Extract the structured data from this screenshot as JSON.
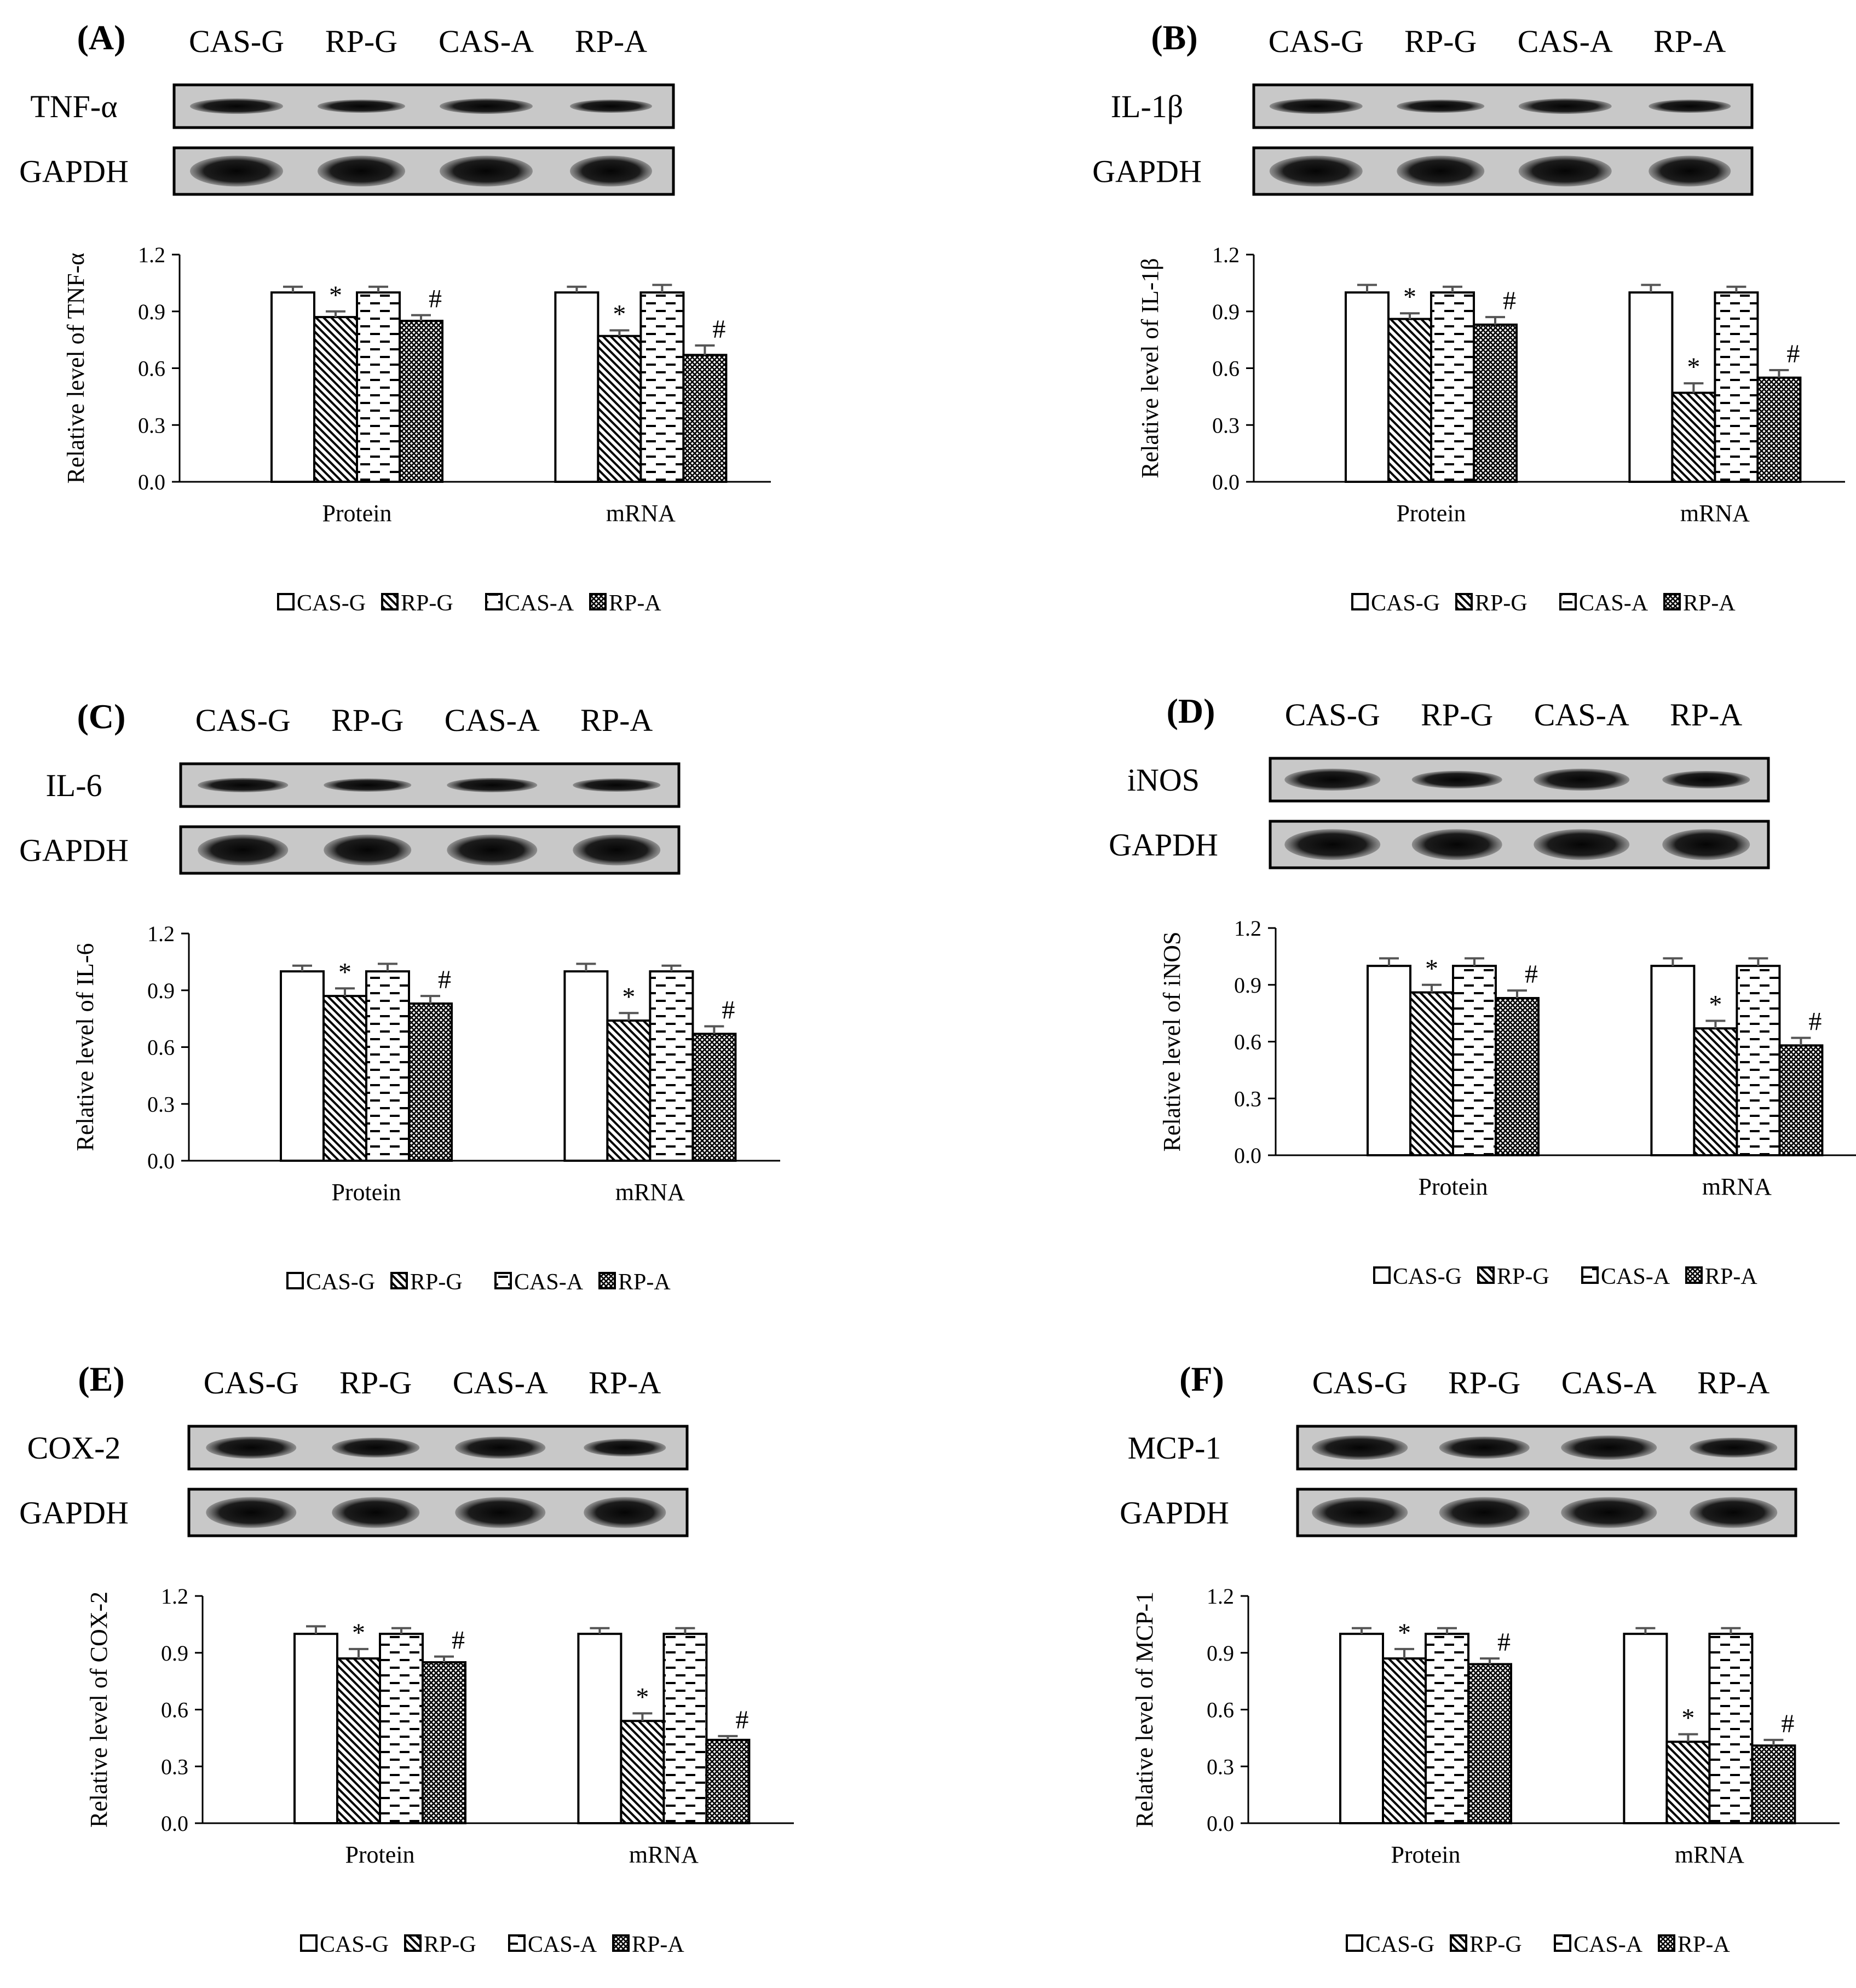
{
  "colors": {
    "axis": "#000000",
    "bar_fill": "#ffffff",
    "band": "#1a1a1a",
    "blot_bg": "#c8c8c8"
  },
  "panels": [
    {
      "letter": "(A)",
      "lanes": [
        "CAS-G",
        "RP-G",
        "CAS-A",
        "RP-A"
      ],
      "target": "TNF-α",
      "reference": "GAPDH",
      "chart_data": {
        "type": "bar",
        "ylabel": "Relative level of TNF-α",
        "ylim": [
          0,
          1.2
        ],
        "yticks": [
          "0.0",
          "0.3",
          "0.6",
          "0.9",
          "1.2"
        ],
        "categories": [
          "Protein",
          "mRNA"
        ],
        "series": [
          {
            "name": "CAS-G",
            "pattern": "plain",
            "values": [
              1.0,
              1.0
            ],
            "errors": [
              0.03,
              0.03
            ],
            "marks": [
              "",
              ""
            ]
          },
          {
            "name": "RP-G",
            "pattern": "diag",
            "values": [
              0.87,
              0.77
            ],
            "errors": [
              0.03,
              0.03
            ],
            "marks": [
              "*",
              "*"
            ]
          },
          {
            "name": "CAS-A",
            "pattern": "dash",
            "values": [
              1.0,
              1.0
            ],
            "errors": [
              0.03,
              0.04
            ],
            "marks": [
              "",
              ""
            ]
          },
          {
            "name": "RP-A",
            "pattern": "cross",
            "values": [
              0.85,
              0.67
            ],
            "errors": [
              0.03,
              0.05
            ],
            "marks": [
              "#",
              "#"
            ]
          }
        ]
      }
    },
    {
      "letter": "(B)",
      "lanes": [
        "CAS-G",
        "RP-G",
        "CAS-A",
        "RP-A"
      ],
      "target": "IL-1β",
      "reference": "GAPDH",
      "chart_data": {
        "type": "bar",
        "ylabel": "Relative level of IL-1β",
        "ylim": [
          0,
          1.2
        ],
        "yticks": [
          "0.0",
          "0.3",
          "0.6",
          "0.9",
          "1.2"
        ],
        "categories": [
          "Protein",
          "mRNA"
        ],
        "series": [
          {
            "name": "CAS-G",
            "pattern": "plain",
            "values": [
              1.0,
              1.0
            ],
            "errors": [
              0.04,
              0.04
            ],
            "marks": [
              "",
              ""
            ]
          },
          {
            "name": "RP-G",
            "pattern": "diag",
            "values": [
              0.86,
              0.47
            ],
            "errors": [
              0.03,
              0.05
            ],
            "marks": [
              "*",
              "*"
            ]
          },
          {
            "name": "CAS-A",
            "pattern": "dash",
            "values": [
              1.0,
              1.0
            ],
            "errors": [
              0.03,
              0.03
            ],
            "marks": [
              "",
              ""
            ]
          },
          {
            "name": "RP-A",
            "pattern": "cross",
            "values": [
              0.83,
              0.55
            ],
            "errors": [
              0.04,
              0.04
            ],
            "marks": [
              "#",
              "#"
            ]
          }
        ]
      }
    },
    {
      "letter": "(C)",
      "lanes": [
        "CAS-G",
        "RP-G",
        "CAS-A",
        "RP-A"
      ],
      "target": "IL-6",
      "reference": "GAPDH",
      "chart_data": {
        "type": "bar",
        "ylabel": "Relative level of IL-6",
        "ylim": [
          0,
          1.2
        ],
        "yticks": [
          "0.0",
          "0.3",
          "0.6",
          "0.9",
          "1.2"
        ],
        "categories": [
          "Protein",
          "mRNA"
        ],
        "series": [
          {
            "name": "CAS-G",
            "pattern": "plain",
            "values": [
              1.0,
              1.0
            ],
            "errors": [
              0.03,
              0.04
            ],
            "marks": [
              "",
              ""
            ]
          },
          {
            "name": "RP-G",
            "pattern": "diag",
            "values": [
              0.87,
              0.74
            ],
            "errors": [
              0.04,
              0.04
            ],
            "marks": [
              "*",
              "*"
            ]
          },
          {
            "name": "CAS-A",
            "pattern": "dash",
            "values": [
              1.0,
              1.0
            ],
            "errors": [
              0.04,
              0.03
            ],
            "marks": [
              "",
              ""
            ]
          },
          {
            "name": "RP-A",
            "pattern": "cross",
            "values": [
              0.83,
              0.67
            ],
            "errors": [
              0.04,
              0.04
            ],
            "marks": [
              "#",
              "#"
            ]
          }
        ]
      }
    },
    {
      "letter": "(D)",
      "lanes": [
        "CAS-G",
        "RP-G",
        "CAS-A",
        "RP-A"
      ],
      "target": "iNOS",
      "reference": "GAPDH",
      "chart_data": {
        "type": "bar",
        "ylabel": "Relative level of iNOS",
        "ylim": [
          0,
          1.2
        ],
        "yticks": [
          "0.0",
          "0.3",
          "0.6",
          "0.9",
          "1.2"
        ],
        "categories": [
          "Protein",
          "mRNA"
        ],
        "series": [
          {
            "name": "CAS-G",
            "pattern": "plain",
            "values": [
              1.0,
              1.0
            ],
            "errors": [
              0.04,
              0.04
            ],
            "marks": [
              "",
              ""
            ]
          },
          {
            "name": "RP-G",
            "pattern": "diag",
            "values": [
              0.86,
              0.67
            ],
            "errors": [
              0.04,
              0.04
            ],
            "marks": [
              "*",
              "*"
            ]
          },
          {
            "name": "CAS-A",
            "pattern": "dash",
            "values": [
              1.0,
              1.0
            ],
            "errors": [
              0.04,
              0.04
            ],
            "marks": [
              "",
              ""
            ]
          },
          {
            "name": "RP-A",
            "pattern": "cross",
            "values": [
              0.83,
              0.58
            ],
            "errors": [
              0.04,
              0.04
            ],
            "marks": [
              "#",
              "#"
            ]
          }
        ]
      }
    },
    {
      "letter": "(E)",
      "lanes": [
        "CAS-G",
        "RP-G",
        "CAS-A",
        "RP-A"
      ],
      "target": "COX-2",
      "reference": "GAPDH",
      "chart_data": {
        "type": "bar",
        "ylabel": "Relative level of COX-2",
        "ylim": [
          0,
          1.2
        ],
        "yticks": [
          "0.0",
          "0.3",
          "0.6",
          "0.9",
          "1.2"
        ],
        "categories": [
          "Protein",
          "mRNA"
        ],
        "series": [
          {
            "name": "CAS-G",
            "pattern": "plain",
            "values": [
              1.0,
              1.0
            ],
            "errors": [
              0.04,
              0.03
            ],
            "marks": [
              "",
              ""
            ]
          },
          {
            "name": "RP-G",
            "pattern": "diag",
            "values": [
              0.87,
              0.54
            ],
            "errors": [
              0.05,
              0.04
            ],
            "marks": [
              "*",
              "*"
            ]
          },
          {
            "name": "CAS-A",
            "pattern": "dash",
            "values": [
              1.0,
              1.0
            ],
            "errors": [
              0.03,
              0.03
            ],
            "marks": [
              "",
              ""
            ]
          },
          {
            "name": "RP-A",
            "pattern": "cross",
            "values": [
              0.85,
              0.44
            ],
            "errors": [
              0.03,
              0.02
            ],
            "marks": [
              "#",
              "#"
            ]
          }
        ]
      }
    },
    {
      "letter": "(F)",
      "lanes": [
        "CAS-G",
        "RP-G",
        "CAS-A",
        "RP-A"
      ],
      "target": "MCP-1",
      "reference": "GAPDH",
      "chart_data": {
        "type": "bar",
        "ylabel": "Relative level of MCP-1",
        "ylim": [
          0,
          1.2
        ],
        "yticks": [
          "0.0",
          "0.3",
          "0.6",
          "0.9",
          "1.2"
        ],
        "categories": [
          "Protein",
          "mRNA"
        ],
        "series": [
          {
            "name": "CAS-G",
            "pattern": "plain",
            "values": [
              1.0,
              1.0
            ],
            "errors": [
              0.03,
              0.03
            ],
            "marks": [
              "",
              ""
            ]
          },
          {
            "name": "RP-G",
            "pattern": "diag",
            "values": [
              0.87,
              0.43
            ],
            "errors": [
              0.05,
              0.04
            ],
            "marks": [
              "*",
              "*"
            ]
          },
          {
            "name": "CAS-A",
            "pattern": "dash",
            "values": [
              1.0,
              1.0
            ],
            "errors": [
              0.03,
              0.03
            ],
            "marks": [
              "",
              ""
            ]
          },
          {
            "name": "RP-A",
            "pattern": "cross",
            "values": [
              0.84,
              0.41
            ],
            "errors": [
              0.03,
              0.03
            ],
            "marks": [
              "#",
              "#"
            ]
          }
        ]
      }
    }
  ]
}
